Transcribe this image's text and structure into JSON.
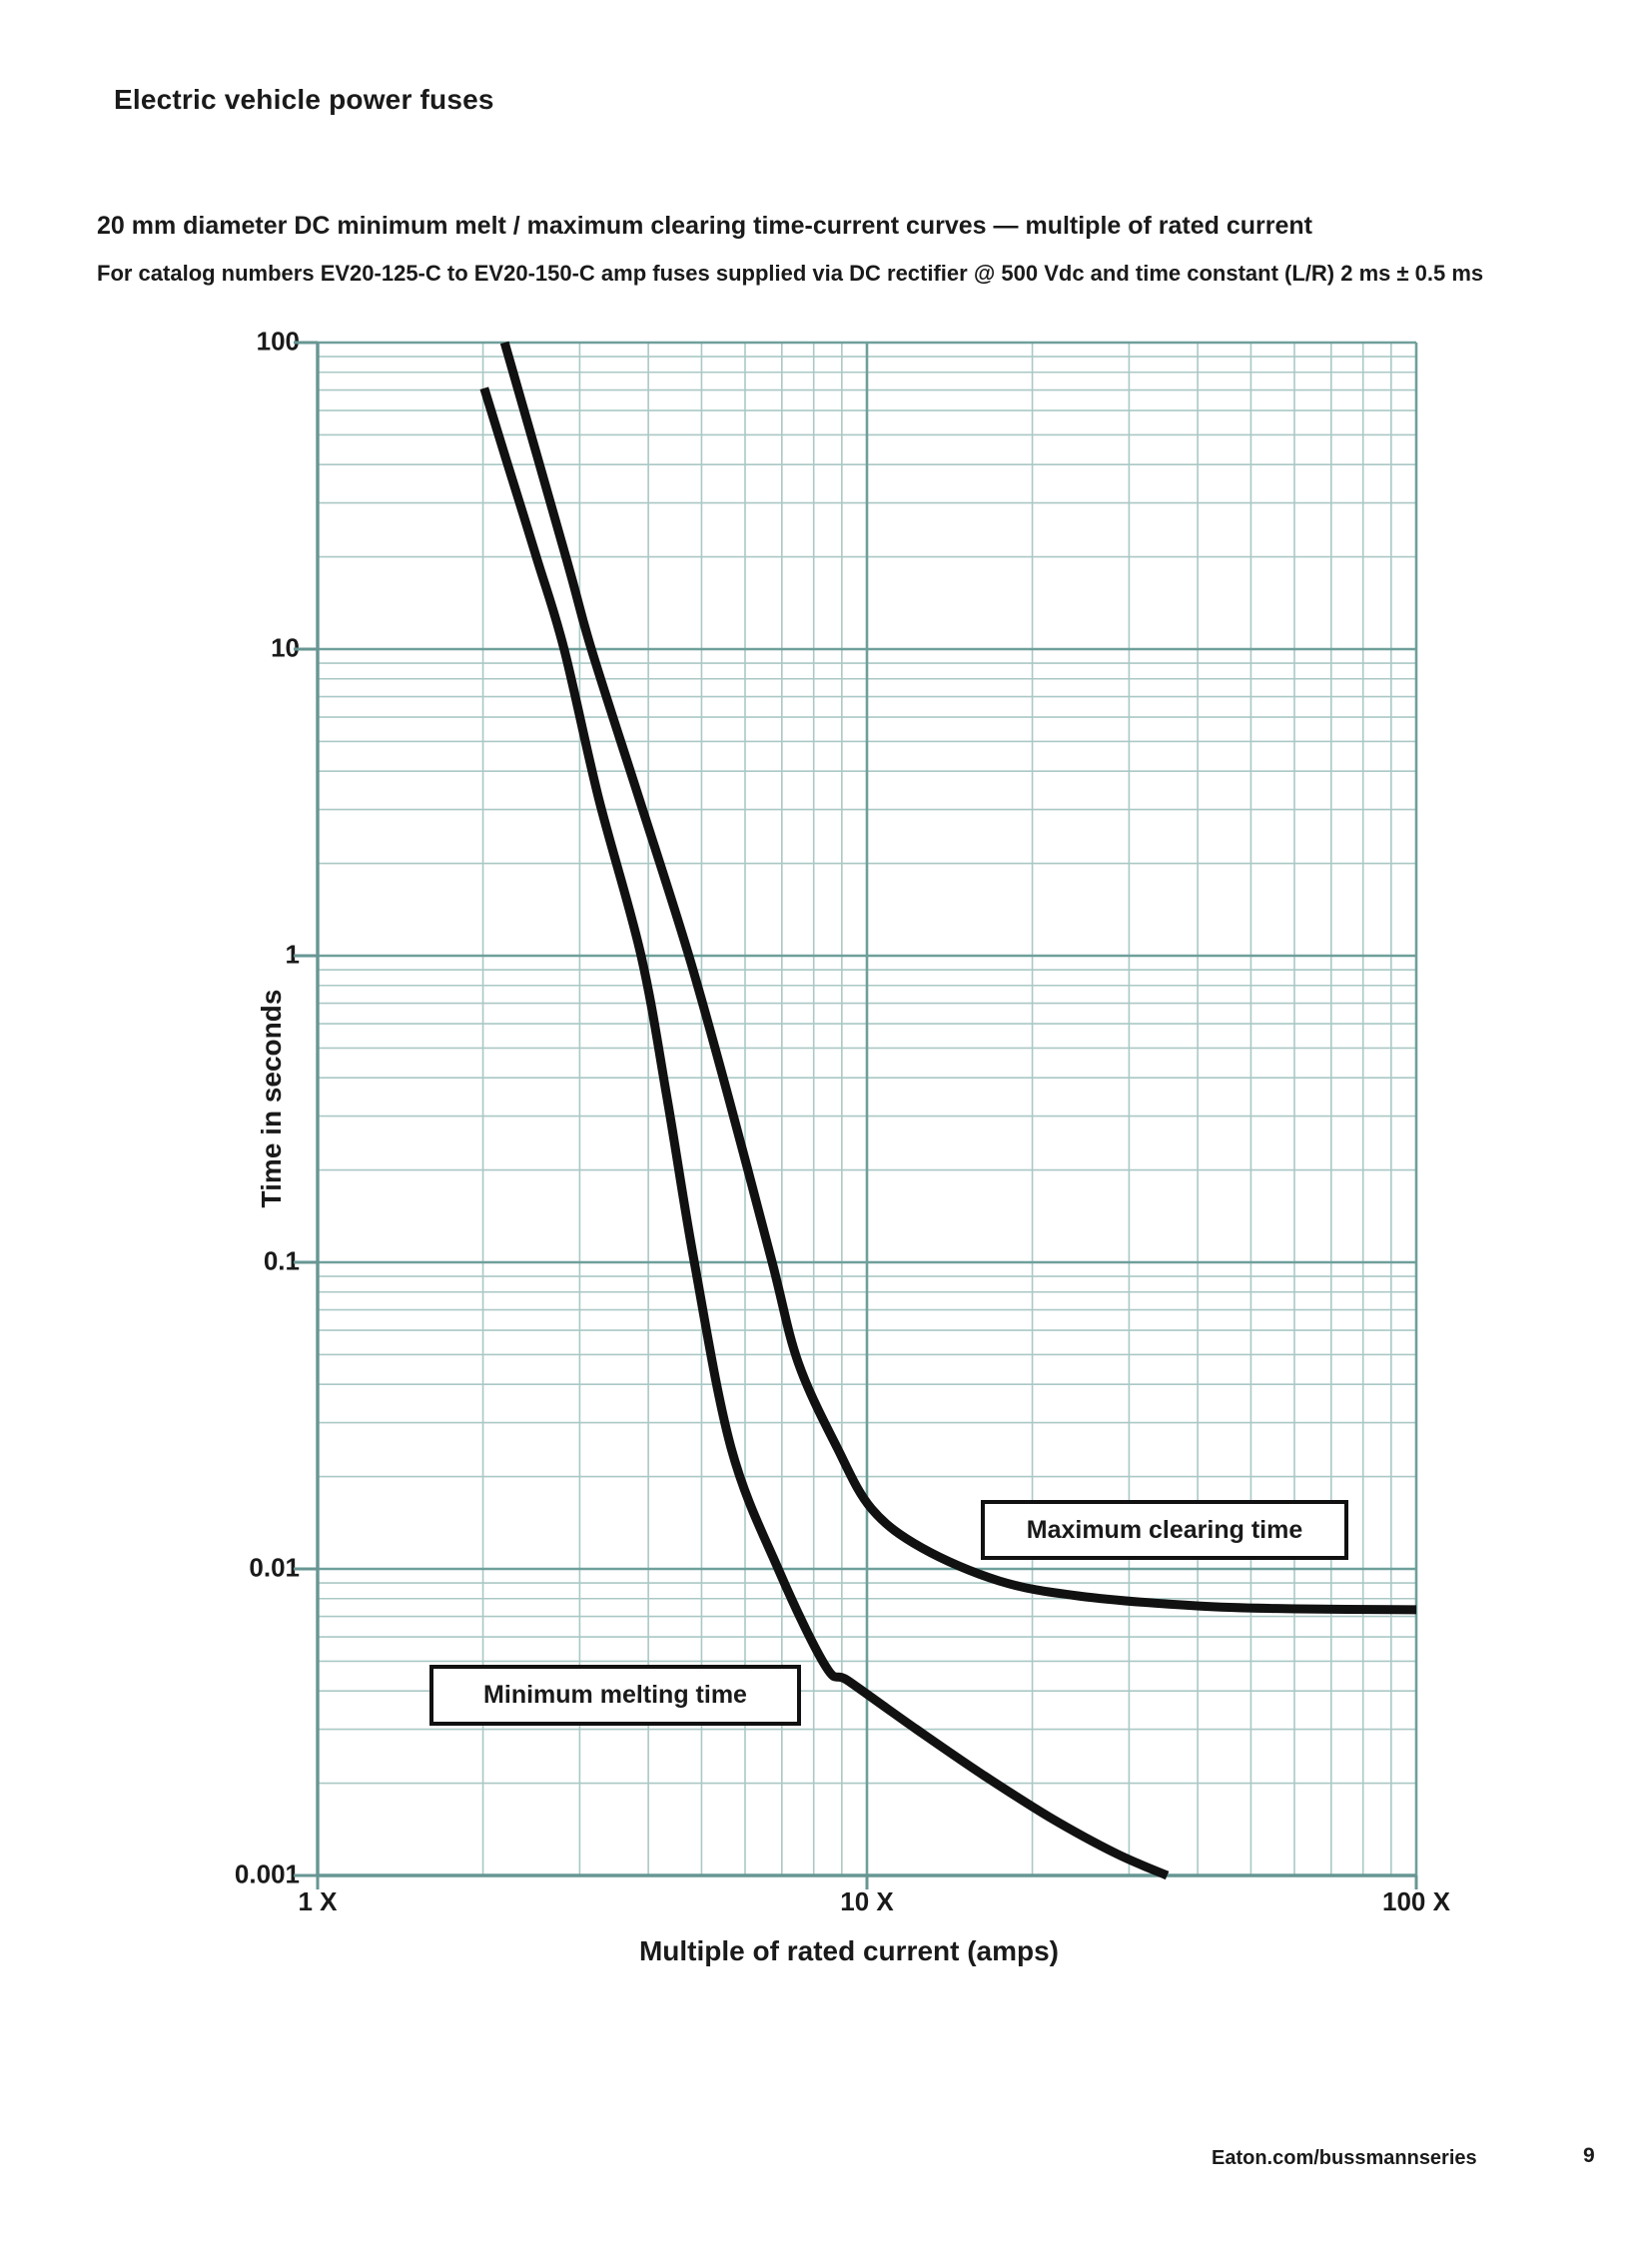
{
  "page": {
    "header": "Electric vehicle power fuses",
    "footer_link": "Eaton.com/bussmannseries",
    "page_number": "9"
  },
  "chart_data": {
    "type": "line",
    "title": "20 mm diameter DC minimum melt / maximum clearing time-current curves — multiple of rated current",
    "subtitle": "For catalog numbers EV20-125-C to EV20-150-C amp fuses supplied via DC rectifier @ 500 Vdc and time constant (L/R) 2 ms ± 0.5 ms",
    "xlabel": "Multiple of rated current (amps)",
    "ylabel": "Time in seconds",
    "x_scale": "log",
    "y_scale": "log",
    "xlim": [
      1,
      100
    ],
    "ylim": [
      0.001,
      100
    ],
    "grid": "log minor+major, both axes",
    "x_tick_labels": [
      "1 X",
      "10 X",
      "100 X"
    ],
    "y_tick_labels": [
      "100",
      "10",
      "1",
      "0.1",
      "0.01",
      "0.001"
    ],
    "colors": {
      "grid_minor": "#aac8c5",
      "grid_major": "#6f9f9b",
      "axis": "#679693",
      "curve": "#111111"
    },
    "series": [
      {
        "name": "Minimum melting time",
        "points": [
          [
            2.01,
            71
          ],
          [
            2.2,
            42
          ],
          [
            2.51,
            19.6
          ],
          [
            2.81,
            10
          ],
          [
            3.25,
            3.25
          ],
          [
            3.88,
            1.0
          ],
          [
            4.33,
            0.34
          ],
          [
            4.85,
            0.1
          ],
          [
            5.66,
            0.0248
          ],
          [
            6.91,
            0.0099
          ],
          [
            8.42,
            0.0048
          ],
          [
            9.27,
            0.0043
          ],
          [
            12.3,
            0.003
          ],
          [
            16.2,
            0.00214
          ],
          [
            21.5,
            0.00155
          ],
          [
            28.4,
            0.00118
          ],
          [
            35.2,
            0.001
          ]
        ]
      },
      {
        "name": "Maximum clearing time",
        "points": [
          [
            2.19,
            100
          ],
          [
            2.84,
            19.6
          ],
          [
            3.15,
            10
          ],
          [
            3.85,
            3.25
          ],
          [
            4.74,
            1.0
          ],
          [
            5.61,
            0.34
          ],
          [
            6.72,
            0.1
          ],
          [
            7.5,
            0.047
          ],
          [
            8.83,
            0.0248
          ],
          [
            10.2,
            0.0157
          ],
          [
            12.6,
            0.0117
          ],
          [
            17.4,
            0.00914
          ],
          [
            24.3,
            0.00816
          ],
          [
            40.2,
            0.00757
          ],
          [
            61,
            0.00741
          ],
          [
            100,
            0.00736
          ]
        ]
      }
    ],
    "annotations": [
      {
        "label": "Maximum clearing time"
      },
      {
        "label": "Minimum melting time"
      }
    ]
  }
}
